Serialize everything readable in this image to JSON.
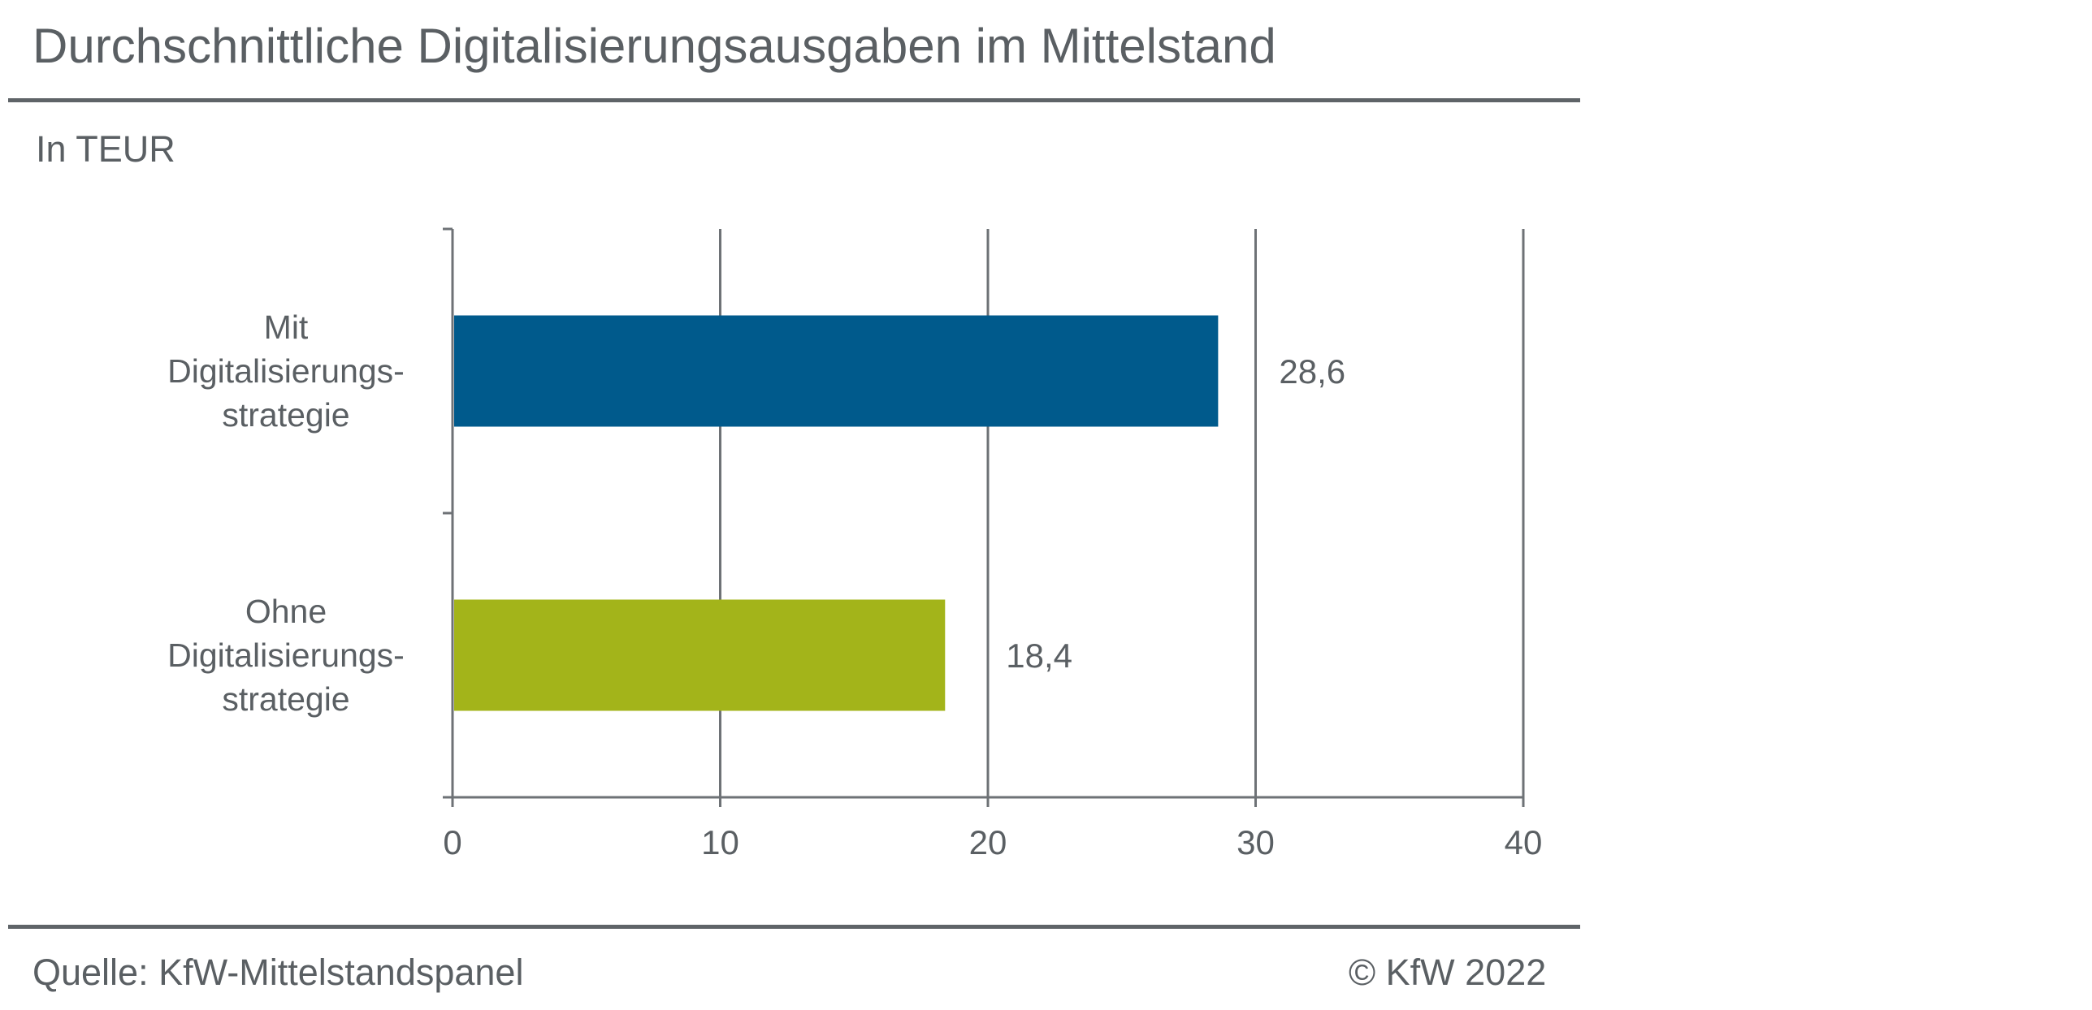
{
  "header": {
    "title": "Durchschnittliche Digitalisierungsausgaben im Mittelstand",
    "unit": "In TEUR"
  },
  "footer": {
    "source": "Quelle: KfW-Mittelstandspanel",
    "copyright": "© KfW 2022"
  },
  "chart_data": {
    "type": "bar",
    "orientation": "horizontal",
    "title": "Durchschnittliche Digitalisierungsausgaben im Mittelstand",
    "subtitle": "In TEUR",
    "categories": [
      [
        "Mit",
        "Digitalisierungs-",
        "strategie"
      ],
      [
        "Ohne",
        "Digitalisierungs-",
        "strategie"
      ]
    ],
    "values": [
      28.6,
      18.4
    ],
    "value_labels": [
      "28,6",
      "18,4"
    ],
    "colors": [
      "#005a8c",
      "#a3b41a"
    ],
    "xlim": [
      0,
      40
    ],
    "x_ticks": [
      0,
      10,
      20,
      30,
      40
    ],
    "grid": true,
    "xlabel": "",
    "ylabel": ""
  }
}
